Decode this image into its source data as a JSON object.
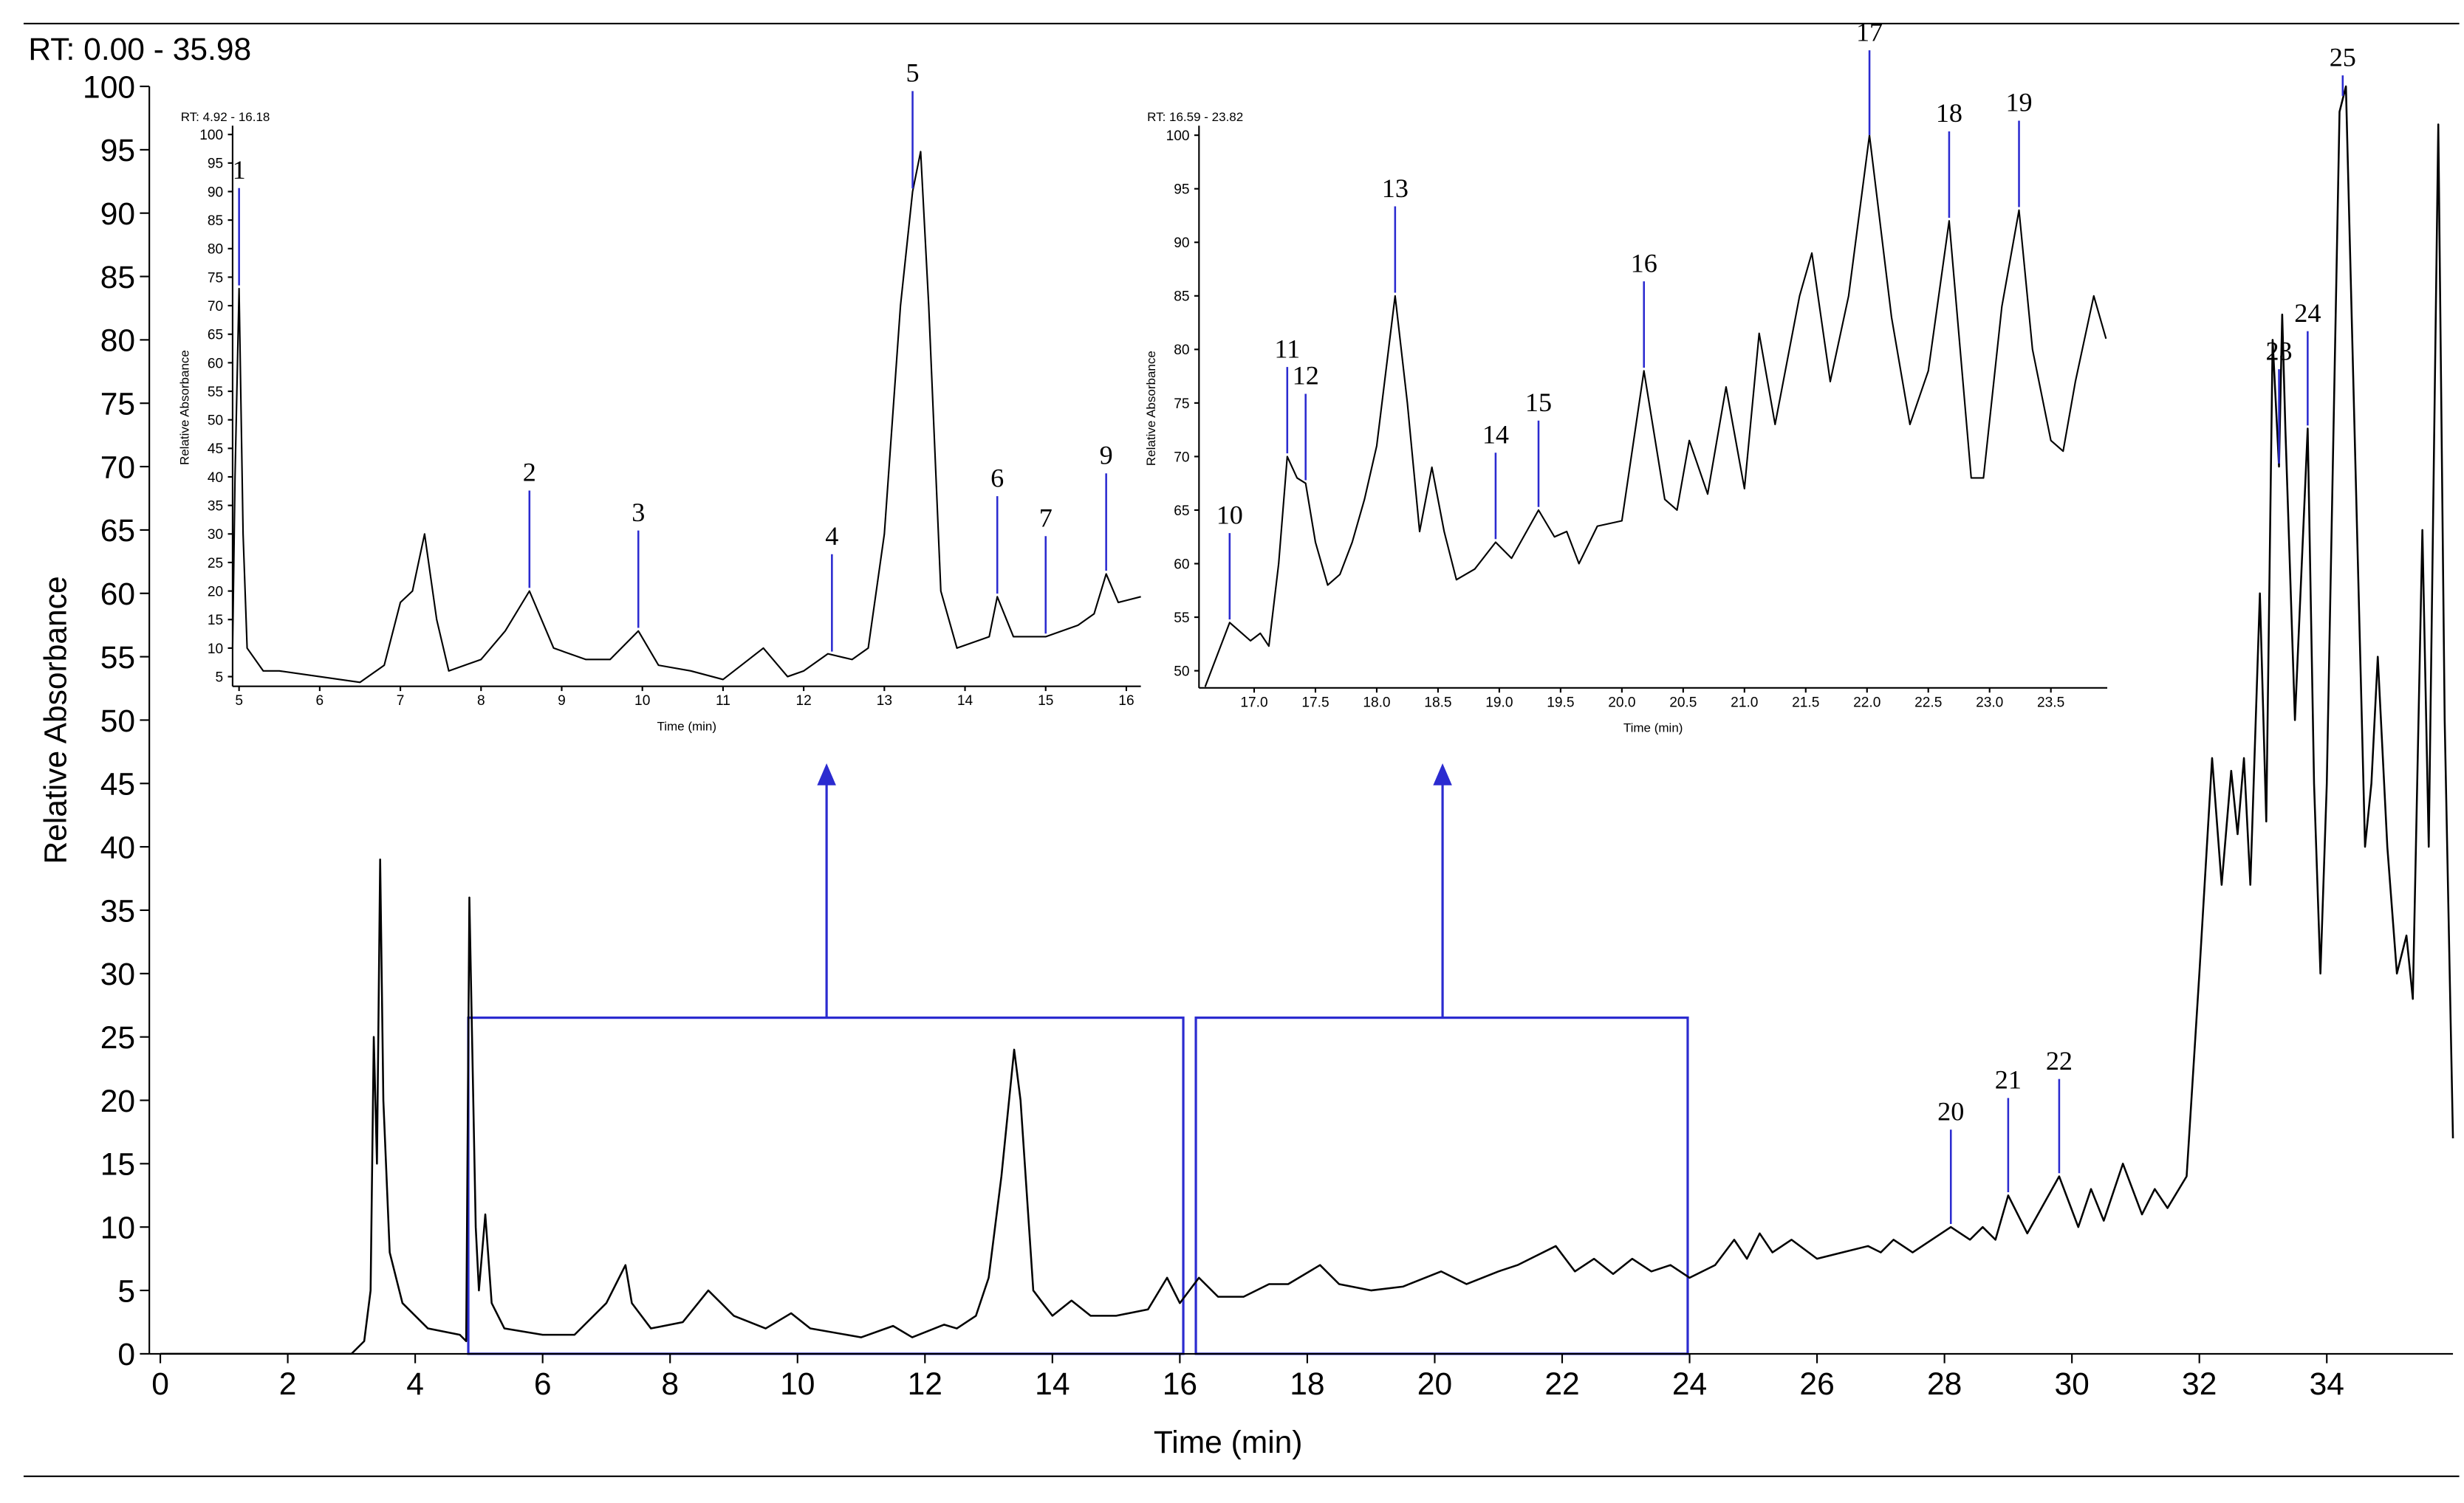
{
  "chart_data": [
    {
      "type": "line",
      "title": "RT: 0.00 - 35.98",
      "x_label": "Time (min)",
      "y_label": "Relative Absorbance",
      "xlim": [
        0,
        35.98
      ],
      "ylim": [
        0,
        100
      ],
      "xticks": [
        0,
        2,
        4,
        6,
        8,
        10,
        12,
        14,
        16,
        18,
        20,
        22,
        24,
        26,
        28,
        30,
        32,
        34
      ],
      "yticks": [
        0,
        5,
        10,
        15,
        20,
        25,
        30,
        35,
        40,
        45,
        50,
        55,
        60,
        65,
        70,
        75,
        80,
        85,
        90,
        95,
        100
      ],
      "grid": false,
      "color": "#000000",
      "annotation_color": "#2b2bd0",
      "x": [
        0,
        3.0,
        3.2,
        3.3,
        3.35,
        3.4,
        3.45,
        3.5,
        3.6,
        3.8,
        4.2,
        4.7,
        4.8,
        4.85,
        4.95,
        5.0,
        5.1,
        5.2,
        5.4,
        6.0,
        6.5,
        7.0,
        7.2,
        7.3,
        7.4,
        7.7,
        8.2,
        8.6,
        9.0,
        9.5,
        9.9,
        10.2,
        11.0,
        11.5,
        11.8,
        12.3,
        12.5,
        12.8,
        13.0,
        13.2,
        13.4,
        13.5,
        13.7,
        14.0,
        14.3,
        14.6,
        15.0,
        15.5,
        15.8,
        16.0,
        16.3,
        16.6,
        17.0,
        17.4,
        17.7,
        18.2,
        18.5,
        19.0,
        19.5,
        20.1,
        20.5,
        21.0,
        21.3,
        21.5,
        21.9,
        22.2,
        22.5,
        22.8,
        23.1,
        23.4,
        23.7,
        24.0,
        24.4,
        24.7,
        24.9,
        25.1,
        25.3,
        25.6,
        26.0,
        26.4,
        26.8,
        27.0,
        27.2,
        27.5,
        28.1,
        28.4,
        28.6,
        28.8,
        29.0,
        29.3,
        29.8,
        30.1,
        30.3,
        30.5,
        30.8,
        31.1,
        31.3,
        31.5,
        31.8,
        32.0,
        32.2,
        32.35,
        32.5,
        32.6,
        32.7,
        32.8,
        32.95,
        33.05,
        33.15,
        33.25,
        33.3,
        33.35,
        33.5,
        33.7,
        33.8,
        33.9,
        34.0,
        34.2,
        34.3,
        34.4,
        34.6,
        34.7,
        34.8,
        34.95,
        35.1,
        35.25,
        35.35,
        35.5,
        35.6,
        35.75,
        35.85,
        35.98
      ],
      "values": [
        0,
        0,
        1,
        5,
        25,
        15,
        39,
        20,
        8,
        4,
        2,
        1.5,
        1,
        36,
        10,
        5,
        11,
        4,
        2,
        1.5,
        1.5,
        4,
        6,
        7,
        4,
        2,
        2.5,
        5,
        3,
        2,
        3.2,
        2,
        1.3,
        2.2,
        1.3,
        2.3,
        2,
        3,
        6,
        14,
        24,
        20,
        5,
        3,
        4.2,
        3,
        3,
        3.5,
        6,
        4,
        6,
        4.5,
        4.5,
        5.5,
        5.5,
        7,
        5.5,
        5,
        5.3,
        6.5,
        5.5,
        6.5,
        7,
        7.5,
        8.5,
        6.5,
        7.5,
        6.3,
        7.5,
        6.5,
        7,
        6,
        7,
        9,
        7.5,
        9.5,
        8,
        9,
        7.5,
        8,
        8.5,
        8,
        9,
        8,
        10,
        9,
        10,
        9,
        12.5,
        9.5,
        14,
        10,
        13,
        10.5,
        15,
        11,
        13,
        11.5,
        14,
        30,
        47,
        37,
        46,
        41,
        47,
        37,
        60,
        42,
        80,
        70,
        82,
        73,
        50,
        73,
        45,
        30,
        45,
        98,
        100,
        80,
        40,
        45,
        55,
        40,
        30,
        33,
        28,
        65,
        40,
        97,
        50,
        17
      ],
      "annotations": [
        {
          "label": "20",
          "x": 28.1
        },
        {
          "label": "21",
          "x": 29.0
        },
        {
          "label": "22",
          "x": 29.8
        },
        {
          "label": "23",
          "x": 33.25
        },
        {
          "label": "24",
          "x": 33.7
        },
        {
          "label": "25",
          "x": 34.25
        }
      ]
    },
    {
      "type": "line",
      "title": "RT: 4.92 - 16.18",
      "x_label": "Time (min)",
      "y_label": "Relative Absorbance",
      "xlim": [
        4.92,
        16.18
      ],
      "ylim": [
        3.3,
        101
      ],
      "xticks": [
        5,
        6,
        7,
        8,
        9,
        10,
        11,
        12,
        13,
        14,
        15,
        16
      ],
      "yticks": [
        5,
        10,
        15,
        20,
        25,
        30,
        35,
        40,
        45,
        50,
        55,
        60,
        65,
        70,
        75,
        80,
        85,
        90,
        95,
        100
      ],
      "grid": false,
      "color": "#000000",
      "annotation_color": "#2b2bd0",
      "x": [
        4.92,
        4.95,
        5.0,
        5.05,
        5.1,
        5.3,
        5.5,
        6.0,
        6.5,
        6.8,
        7.0,
        7.15,
        7.3,
        7.45,
        7.6,
        8.0,
        8.3,
        8.6,
        8.9,
        9.3,
        9.6,
        9.95,
        10.2,
        10.6,
        11.0,
        11.5,
        11.8,
        12.0,
        12.3,
        12.6,
        12.8,
        13.0,
        13.2,
        13.35,
        13.45,
        13.55,
        13.7,
        13.9,
        14.3,
        14.4,
        14.6,
        15.0,
        15.4,
        15.6,
        15.75,
        15.9,
        16.18
      ],
      "values": [
        10,
        40,
        73,
        30,
        10,
        6,
        6,
        5,
        4,
        7,
        18,
        20,
        30,
        15,
        6,
        8,
        13,
        20,
        10,
        8,
        8,
        13,
        7,
        6,
        4.5,
        10,
        5,
        6,
        9,
        8,
        10,
        30,
        70,
        90,
        97,
        70,
        20,
        10,
        12,
        19,
        12,
        12,
        14,
        16,
        23,
        18,
        19
      ],
      "annotations": [
        {
          "label": "1",
          "x": 5.0
        },
        {
          "label": "2",
          "x": 8.6
        },
        {
          "label": "3",
          "x": 9.95
        },
        {
          "label": "4",
          "x": 12.35
        },
        {
          "label": "5",
          "x": 13.35
        },
        {
          "label": "6",
          "x": 14.4
        },
        {
          "label": "7",
          "x": 15.0
        },
        {
          "label": "9",
          "x": 15.75
        }
      ]
    },
    {
      "type": "line",
      "title": "RT: 16.59 - 23.82",
      "x_label": "Time (min)",
      "y_label": "Relative Absorbance",
      "xlim": [
        16.55,
        23.96
      ],
      "ylim": [
        48.4,
        100.6
      ],
      "xticks": [
        {
          "value": 17,
          "label": "17.0"
        },
        17.5,
        {
          "value": 18,
          "label": "18.0"
        },
        18.5,
        {
          "value": 19,
          "label": "19.0"
        },
        19.5,
        {
          "value": 20,
          "label": "20.0"
        },
        20.5,
        {
          "value": 21,
          "label": "21.0"
        },
        21.5,
        {
          "value": 22,
          "label": "22.0"
        },
        22.5,
        {
          "value": 23,
          "label": "23.0"
        },
        23.5
      ],
      "yticks": [
        50,
        55,
        60,
        65,
        70,
        75,
        80,
        85,
        90,
        95,
        100
      ],
      "grid": false,
      "color": "#000000",
      "annotation_color": "#2b2bd0",
      "x": [
        16.6,
        16.7,
        16.8,
        16.9,
        16.97,
        17.05,
        17.12,
        17.2,
        17.27,
        17.35,
        17.42,
        17.5,
        17.6,
        17.7,
        17.8,
        17.9,
        18.0,
        18.15,
        18.25,
        18.35,
        18.45,
        18.55,
        18.65,
        18.8,
        18.97,
        19.1,
        19.32,
        19.45,
        19.55,
        19.65,
        19.8,
        20.0,
        20.18,
        20.35,
        20.45,
        20.55,
        20.7,
        20.85,
        21.0,
        21.12,
        21.25,
        21.35,
        21.45,
        21.55,
        21.7,
        21.85,
        22.02,
        22.2,
        22.35,
        22.5,
        22.67,
        22.85,
        22.95,
        23.1,
        23.24,
        23.35,
        23.5,
        23.6,
        23.7,
        23.85,
        23.95
      ],
      "values": [
        48.5,
        51.5,
        54.5,
        53.5,
        52.8,
        53.5,
        52.3,
        60,
        70,
        68,
        67.5,
        62,
        58,
        59,
        62,
        66,
        71,
        85,
        75,
        63,
        69,
        63,
        58.5,
        59.5,
        62,
        60.5,
        65,
        62.5,
        63,
        60,
        63.5,
        64,
        78,
        66,
        65,
        71.5,
        66.5,
        76.5,
        67,
        81.5,
        73,
        79,
        85,
        89,
        77,
        85,
        100,
        83,
        73,
        78,
        92,
        68,
        68,
        84,
        93,
        80,
        71.5,
        70.5,
        77,
        85,
        81
      ],
      "annotations": [
        {
          "label": "10",
          "x": 16.8
        },
        {
          "label": "11",
          "x": 17.27
        },
        {
          "label": "12",
          "x": 17.42
        },
        {
          "label": "13",
          "x": 18.15
        },
        {
          "label": "14",
          "x": 18.97
        },
        {
          "label": "15",
          "x": 19.32
        },
        {
          "label": "16",
          "x": 20.18
        },
        {
          "label": "17",
          "x": 22.02
        },
        {
          "label": "18",
          "x": 22.67
        },
        {
          "label": "19",
          "x": 23.24
        }
      ]
    }
  ]
}
